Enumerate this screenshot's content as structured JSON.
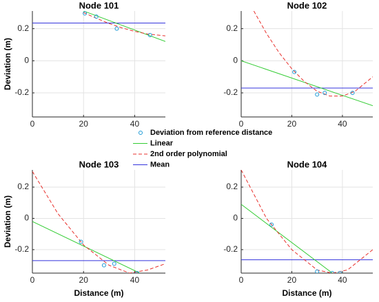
{
  "legend": [
    {
      "name": "Deviation from reference distance",
      "color": "#1f9bd7"
    },
    {
      "name": "Linear",
      "color": "#33cc33"
    },
    {
      "name": "2nd order polynomial",
      "color": "#e8302c"
    },
    {
      "name": "Mean",
      "color": "#3333dd"
    }
  ],
  "chart_data": [
    {
      "type": "fit",
      "title": "Node 101",
      "ylabel": "Deviation (m)",
      "xlim": [
        0,
        52
      ],
      "ylim": [
        -0.35,
        0.31
      ],
      "xticks": [
        0,
        20,
        40
      ],
      "yticks": [
        -0.2,
        0,
        0.2
      ],
      "grid": true,
      "points": {
        "x": [
          20.5,
          25,
          33,
          46
        ],
        "values": [
          0.295,
          0.275,
          0.2,
          0.16
        ]
      },
      "linear": {
        "x": [
          20,
          52
        ],
        "values": [
          0.31,
          0.12
        ]
      },
      "poly": {
        "x": [
          20,
          25,
          30,
          35,
          40,
          45,
          52
        ],
        "values": [
          0.3,
          0.265,
          0.232,
          0.205,
          0.183,
          0.167,
          0.155
        ]
      },
      "mean": 0.235
    },
    {
      "type": "fit",
      "title": "Node 102",
      "xlim": [
        0,
        52
      ],
      "ylim": [
        -0.35,
        0.31
      ],
      "xticks": [
        0,
        20,
        40
      ],
      "yticks": [
        -0.2,
        0,
        0.2
      ],
      "grid": true,
      "points": {
        "x": [
          21,
          30,
          33,
          44
        ],
        "values": [
          -0.07,
          -0.21,
          -0.2,
          -0.2
        ]
      },
      "linear": {
        "x": [
          0,
          52
        ],
        "values": [
          0,
          -0.28
        ]
      },
      "poly": {
        "x": [
          5,
          10,
          15,
          20,
          25,
          30,
          35,
          40,
          45,
          52
        ],
        "values": [
          0.31,
          0.17,
          0.05,
          -0.05,
          -0.13,
          -0.19,
          -0.22,
          -0.22,
          -0.19,
          -0.1
        ]
      },
      "mean": -0.17
    },
    {
      "type": "fit",
      "title": "Node 103",
      "ylabel": "Deviation (m)",
      "xlabel": "Distance (m)",
      "xlim": [
        0,
        52
      ],
      "ylim": [
        -0.35,
        0.31
      ],
      "xticks": [
        0,
        20,
        40
      ],
      "yticks": [
        -0.2,
        0,
        0.2
      ],
      "grid": true,
      "points": {
        "x": [
          19,
          28,
          32,
          41
        ],
        "values": [
          -0.15,
          -0.3,
          -0.29,
          -0.35
        ]
      },
      "linear": {
        "x": [
          0,
          42
        ],
        "values": [
          -0.02,
          -0.35
        ]
      },
      "poly": {
        "x": [
          0,
          10,
          20,
          30,
          38,
          45,
          52
        ],
        "values": [
          0.3,
          0.03,
          -0.17,
          -0.3,
          -0.35,
          -0.33,
          -0.29
        ]
      },
      "mean": -0.27
    },
    {
      "type": "fit",
      "title": "Node 104",
      "xlabel": "Distance (m)",
      "xlim": [
        0,
        52
      ],
      "ylim": [
        -0.35,
        0.31
      ],
      "xticks": [
        0,
        20,
        40
      ],
      "yticks": [
        -0.2,
        0,
        0.2
      ],
      "grid": true,
      "points": {
        "x": [
          12,
          30,
          36,
          39
        ],
        "values": [
          -0.04,
          -0.34,
          -0.35,
          -0.35
        ]
      },
      "linear": {
        "x": [
          0,
          36
        ],
        "values": [
          0.09,
          -0.35
        ]
      },
      "poly": {
        "x": [
          0,
          10,
          20,
          30,
          36,
          42,
          52
        ],
        "values": [
          0.31,
          0,
          -0.2,
          -0.33,
          -0.35,
          -0.33,
          -0.2
        ]
      },
      "mean": -0.265
    }
  ]
}
